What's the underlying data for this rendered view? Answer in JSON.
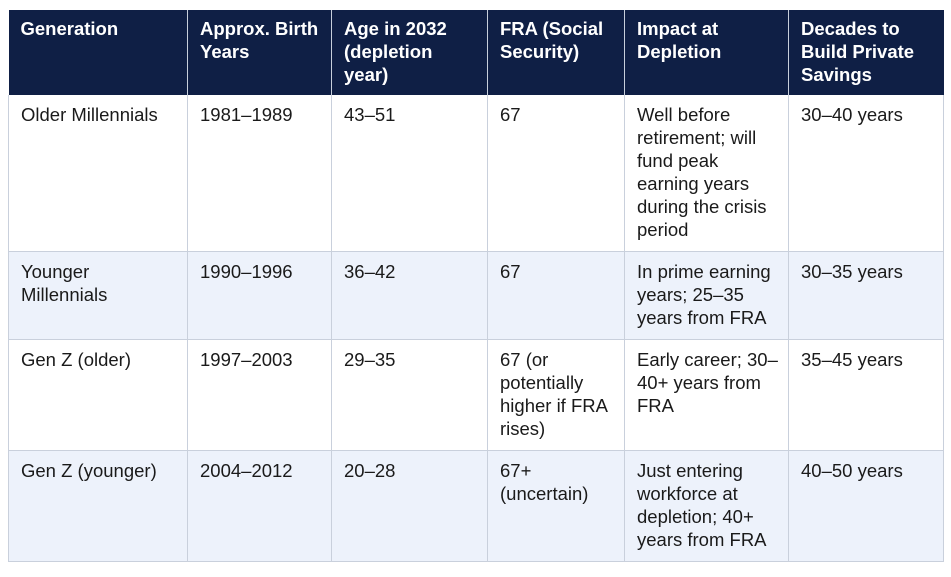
{
  "table": {
    "headers": [
      "Generation",
      "Approx. Birth Years",
      "Age in 2032 (depletion year)",
      "FRA (Social Security)",
      "Impact at Depletion",
      "Decades to Build Private Savings"
    ],
    "rows": [
      [
        "Older Millennials",
        "1981–1989",
        "43–51",
        "67",
        "Well before retirement; will fund peak earning years during the crisis period",
        "30–40 years"
      ],
      [
        "Younger Millennials",
        "1990–1996",
        "36–42",
        "67",
        "In prime earning years; 25–35 years from FRA",
        "30–35 years"
      ],
      [
        "Gen Z (older)",
        "1997–2003",
        "29–35",
        "67 (or potentially higher if FRA rises)",
        "Early career; 30–40+ years from FRA",
        "35–45 years"
      ],
      [
        "Gen Z (younger)",
        "2004–2012",
        "20–28",
        "67+ (uncertain)",
        "Just entering workforce at depletion; 40+ years from FRA",
        "40–50 years"
      ]
    ]
  },
  "colors": {
    "header_bg": "#0f1f45",
    "header_text": "#ffffff",
    "row_tint": "#edf2fb",
    "row_light": "#ffffff",
    "grid": "#c9d0dc"
  }
}
